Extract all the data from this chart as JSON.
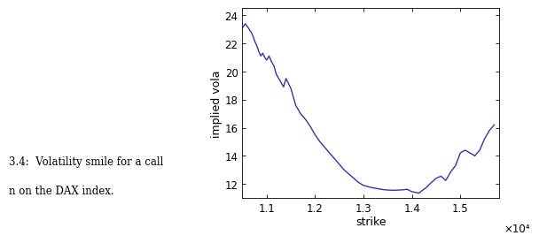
{
  "line_color": "#3333AA",
  "line_width": 1.0,
  "xlabel": "strike",
  "ylabel": "implied vola",
  "xlabel_fontsize": 9,
  "ylabel_fontsize": 9,
  "tick_fontsize": 8.5,
  "xlim": [
    10500,
    15800
  ],
  "ylim": [
    11.0,
    24.5
  ],
  "yticks": [
    12,
    14,
    16,
    18,
    20,
    22,
    24
  ],
  "xtick_labels": [
    "1.1",
    "1.2",
    "1.3",
    "1.4",
    "1.5"
  ],
  "xtick_positions": [
    11000,
    12000,
    13000,
    14000,
    15000
  ],
  "x_scale_label": "×10⁴",
  "caption_line1": "3.4:  Volatility smile for a call",
  "caption_line2": "n on the DAX index.",
  "caption_fontsize": 8.5,
  "x": [
    10500,
    10560,
    10620,
    10680,
    10720,
    10760,
    10800,
    10840,
    10880,
    10920,
    10960,
    11000,
    11050,
    11100,
    11150,
    11200,
    11250,
    11300,
    11350,
    11400,
    11500,
    11600,
    11700,
    11800,
    11900,
    12000,
    12100,
    12200,
    12300,
    12400,
    12500,
    12600,
    12700,
    12800,
    12900,
    13000,
    13100,
    13200,
    13300,
    13400,
    13500,
    13600,
    13700,
    13800,
    13900,
    14000,
    14050,
    14100,
    14150,
    14200,
    14300,
    14400,
    14500,
    14600,
    14700,
    14800,
    14900,
    15000,
    15100,
    15200,
    15300,
    15400,
    15500,
    15600,
    15700
  ],
  "y": [
    23.1,
    23.4,
    23.1,
    22.8,
    22.5,
    22.1,
    21.8,
    21.4,
    21.1,
    21.3,
    21.0,
    20.8,
    21.1,
    20.7,
    20.4,
    19.8,
    19.5,
    19.2,
    18.9,
    19.5,
    18.8,
    17.6,
    17.0,
    16.6,
    16.1,
    15.5,
    15.0,
    14.6,
    14.2,
    13.8,
    13.4,
    13.0,
    12.7,
    12.4,
    12.1,
    11.9,
    11.8,
    11.72,
    11.66,
    11.6,
    11.57,
    11.55,
    11.56,
    11.58,
    11.62,
    11.45,
    11.42,
    11.38,
    11.35,
    11.5,
    11.75,
    12.1,
    12.4,
    12.55,
    12.25,
    12.85,
    13.3,
    14.2,
    14.4,
    14.2,
    14.0,
    14.4,
    15.2,
    15.8,
    16.2
  ]
}
